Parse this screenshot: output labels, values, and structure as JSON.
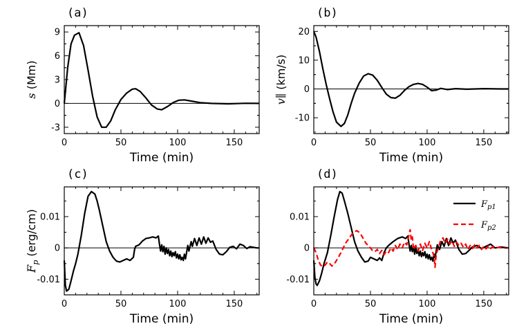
{
  "chart_data": [
    {
      "panel": "(a)",
      "type": "line",
      "xlabel": "Time (min)",
      "ylabel": "s (Mm)",
      "xlim": [
        0,
        172
      ],
      "ylim": [
        -3.8,
        9.8
      ],
      "xticks": [
        0,
        50,
        100,
        150
      ],
      "yticks": [
        -3,
        0,
        3,
        6,
        9
      ],
      "ytick_labels": [
        "-3",
        "0",
        "3",
        "6",
        "9"
      ],
      "series": [
        {
          "name": "s",
          "color": "#000000",
          "dash": "solid",
          "x": [
            0,
            3,
            6,
            9,
            13,
            17,
            21,
            25,
            29,
            33,
            37,
            41,
            45,
            50,
            55,
            60,
            63,
            67,
            72,
            77,
            82,
            86,
            91,
            96,
            101,
            106,
            112,
            120,
            130,
            145,
            160,
            172
          ],
          "y": [
            0,
            4.5,
            7.5,
            8.6,
            8.9,
            7.3,
            4.2,
            0.9,
            -1.7,
            -3.0,
            -3.0,
            -2.2,
            -0.8,
            0.5,
            1.3,
            1.8,
            1.85,
            1.5,
            0.7,
            -0.2,
            -0.7,
            -0.8,
            -0.4,
            0.1,
            0.4,
            0.45,
            0.3,
            0.1,
            0.0,
            -0.05,
            0.02,
            0.0
          ]
        }
      ]
    },
    {
      "panel": "(b)",
      "type": "line",
      "xlabel": "Time (min)",
      "ylabel": "v∥ (km/s)",
      "xlim": [
        0,
        172
      ],
      "ylim": [
        -15.5,
        22
      ],
      "xticks": [
        0,
        50,
        100,
        150
      ],
      "yticks": [
        -10,
        0,
        10,
        20
      ],
      "ytick_labels": [
        "-10",
        "0",
        "10",
        "20"
      ],
      "series": [
        {
          "name": "v_par",
          "color": "#000000",
          "dash": "solid",
          "x": [
            0,
            2,
            5,
            8,
            11,
            14,
            17,
            20,
            24,
            27,
            30,
            33,
            36,
            40,
            44,
            48,
            52,
            56,
            60,
            64,
            68,
            72,
            76,
            80,
            84,
            88,
            92,
            96,
            100,
            104,
            108,
            112,
            118,
            125,
            135,
            150,
            165,
            172
          ],
          "y": [
            20,
            18,
            13,
            7,
            1.5,
            -3.5,
            -8,
            -11.5,
            -13,
            -12,
            -9,
            -5,
            -1.5,
            2,
            4.5,
            5.3,
            4.8,
            3,
            0.5,
            -1.8,
            -3,
            -3.2,
            -2.2,
            -0.5,
            0.8,
            1.6,
            1.9,
            1.6,
            0.6,
            -0.6,
            -0.4,
            0.2,
            -0.2,
            0.1,
            -0.1,
            0.1,
            0,
            0
          ]
        }
      ]
    },
    {
      "panel": "(c)",
      "type": "line",
      "xlabel": "Time (min)",
      "ylabel": "F_p (erg/cm)",
      "xlim": [
        0,
        172
      ],
      "ylim": [
        -0.015,
        0.0195
      ],
      "xticks": [
        0,
        50,
        100,
        150
      ],
      "yticks": [
        -0.01,
        0,
        0.01
      ],
      "ytick_labels": [
        "-0.01",
        "0",
        "0.01"
      ],
      "series": [
        {
          "name": "F_p",
          "color": "#000000",
          "dash": "solid",
          "x": [
            0,
            1,
            2,
            4,
            6,
            8,
            10,
            12,
            15,
            18,
            21,
            24,
            27,
            29,
            31,
            34,
            37,
            40,
            43,
            46,
            49,
            52,
            55,
            58,
            61,
            62,
            63,
            66,
            69,
            72,
            75,
            78,
            81,
            83,
            84,
            85,
            86,
            87,
            88,
            89,
            90,
            91,
            92,
            93,
            94,
            95,
            96,
            97,
            98,
            99,
            100,
            101,
            102,
            103,
            104,
            105,
            106,
            107,
            109,
            110,
            112,
            113,
            115,
            117,
            119,
            121,
            123,
            125,
            127,
            129,
            131,
            134,
            137,
            140,
            143,
            146,
            149,
            152,
            155,
            158,
            161,
            164,
            167,
            170,
            172
          ],
          "y": [
            -0.004,
            -0.012,
            -0.0138,
            -0.0132,
            -0.0105,
            -0.0075,
            -0.005,
            -0.002,
            0.004,
            0.011,
            0.0165,
            0.018,
            0.0172,
            0.015,
            0.012,
            0.007,
            0.002,
            -0.001,
            -0.003,
            -0.0042,
            -0.0045,
            -0.004,
            -0.0035,
            -0.004,
            -0.003,
            -0.0005,
            0.0005,
            0.001,
            0.0022,
            0.003,
            0.0032,
            0.0035,
            0.0032,
            0.0038,
            0.0012,
            -0.001,
            0.001,
            -0.0012,
            0.0005,
            -0.002,
            0.0,
            -0.0018,
            -0.0005,
            -0.0025,
            -0.001,
            -0.0028,
            -0.0015,
            -0.0025,
            -0.0012,
            -0.0032,
            -0.002,
            -0.0035,
            -0.0022,
            -0.0038,
            -0.003,
            -0.004,
            -0.002,
            -0.0035,
            0.0008,
            -0.001,
            0.002,
            0.0005,
            0.003,
            0.0008,
            0.0032,
            0.0012,
            0.0035,
            0.0015,
            0.0032,
            0.0018,
            0.0022,
            -0.0005,
            -0.002,
            -0.0022,
            -0.0012,
            0.0002,
            0.0005,
            -0.0003,
            0.0012,
            0.0008,
            -0.0002,
            0.0004,
            0.0002,
            0.0,
            0.0
          ]
        }
      ]
    },
    {
      "panel": "(d)",
      "type": "line",
      "xlabel": "Time (min)",
      "ylabel": "",
      "xlim": [
        0,
        172
      ],
      "ylim": [
        -0.015,
        0.0195
      ],
      "xticks": [
        0,
        50,
        100,
        150
      ],
      "yticks": [
        -0.01,
        0,
        0.01
      ],
      "ytick_labels": [
        "-0.01",
        "0",
        "0.01"
      ],
      "legend": "top-right",
      "series": [
        {
          "name": "F",
          "sub": "p1",
          "color": "#000000",
          "dash": "solid",
          "x": [
            0,
            1,
            2,
            3,
            5,
            7,
            9,
            12,
            15,
            18,
            21,
            23,
            25,
            27,
            30,
            33,
            36,
            39,
            42,
            45,
            48,
            50,
            53,
            56,
            58,
            60,
            62,
            64,
            66,
            70,
            74,
            78,
            81,
            83,
            84,
            85,
            86,
            87,
            88,
            89,
            90,
            91,
            92,
            93,
            94,
            95,
            96,
            97,
            98,
            99,
            100,
            101,
            102,
            103,
            104,
            105,
            106,
            107,
            109,
            111,
            113,
            115,
            117,
            119,
            121,
            123,
            125,
            128,
            131,
            134,
            137,
            140,
            144,
            148,
            152,
            156,
            160,
            165,
            172
          ],
          "y": [
            -0.004,
            -0.0095,
            -0.0115,
            -0.012,
            -0.0105,
            -0.008,
            -0.005,
            -0.0015,
            0.004,
            0.01,
            0.0155,
            0.018,
            0.0175,
            0.015,
            0.011,
            0.0065,
            0.002,
            -0.001,
            -0.003,
            -0.0045,
            -0.0042,
            -0.003,
            -0.0035,
            -0.004,
            -0.0032,
            -0.004,
            -0.0015,
            0.0,
            0.0008,
            0.002,
            0.003,
            0.0035,
            0.003,
            0.0038,
            0.0012,
            -0.001,
            0.0008,
            -0.0012,
            0.0005,
            -0.002,
            0.0,
            -0.0018,
            -0.0005,
            -0.0025,
            -0.001,
            -0.0028,
            -0.0015,
            -0.0025,
            -0.0012,
            -0.0032,
            -0.002,
            -0.0035,
            -0.0022,
            -0.0038,
            -0.003,
            -0.0042,
            -0.002,
            -0.0032,
            0.001,
            -0.0005,
            0.002,
            0.0005,
            0.003,
            0.0008,
            0.0032,
            0.0015,
            0.0025,
            -0.0005,
            -0.002,
            -0.0018,
            -0.0008,
            0.0003,
            0.0008,
            -0.0002,
            0.0005,
            0.0012,
            0.0,
            0.0003,
            0.0
          ]
        },
        {
          "name": "F",
          "sub": "p2",
          "color": "#ff0000",
          "dash": "dashed",
          "x": [
            0,
            2,
            4,
            6,
            8,
            10,
            12,
            14,
            16,
            18,
            20,
            22,
            24,
            26,
            28,
            30,
            32,
            34,
            36,
            38,
            40,
            42,
            44,
            46,
            48,
            50,
            52,
            54,
            56,
            58,
            60,
            62,
            64,
            66,
            68,
            70,
            72,
            74,
            76,
            78,
            80,
            82,
            84,
            85,
            86,
            87,
            88,
            90,
            92,
            94,
            96,
            98,
            100,
            102,
            104,
            106,
            107,
            108,
            110,
            112,
            114,
            116,
            118,
            120,
            122,
            124,
            126,
            128,
            130,
            132,
            134,
            136,
            138,
            140,
            142,
            144,
            146,
            148,
            150,
            152,
            154,
            156,
            158,
            160,
            163,
            166,
            169,
            172
          ],
          "y": [
            0.0,
            -0.0015,
            -0.004,
            -0.0055,
            -0.006,
            -0.0055,
            -0.0045,
            -0.005,
            -0.0058,
            -0.0052,
            -0.004,
            -0.0028,
            -0.0015,
            0.0,
            0.0015,
            0.0025,
            0.0035,
            0.0045,
            0.0052,
            0.0055,
            0.005,
            0.004,
            0.0028,
            0.0015,
            0.0008,
            0.0,
            -0.001,
            -0.0012,
            -0.0005,
            -0.0018,
            -0.0008,
            -0.0022,
            -0.001,
            -0.0015,
            0.0,
            -0.001,
            0.0008,
            -0.0005,
            0.0012,
            0.0,
            0.0018,
            0.001,
            0.0042,
            0.0058,
            0.0025,
            0.0035,
            -0.0005,
            0.0008,
            -0.001,
            0.0012,
            -0.0008,
            0.0015,
            0.0,
            0.002,
            -0.0005,
            -0.0025,
            -0.0062,
            -0.002,
            0.0,
            0.0025,
            0.0032,
            0.0015,
            0.0028,
            0.0012,
            0.0022,
            0.0005,
            0.0018,
            0.0008,
            0.0015,
            0.0002,
            0.0012,
            -0.0005,
            0.0008,
            -0.0002,
            0.001,
            0.0,
            0.0008,
            -0.0005,
            0.0005,
            -0.0003,
            0.0006,
            -0.0002,
            0.0004,
            0.0,
            0.0002,
            0.0,
            0.0,
            0.0
          ]
        }
      ]
    }
  ]
}
